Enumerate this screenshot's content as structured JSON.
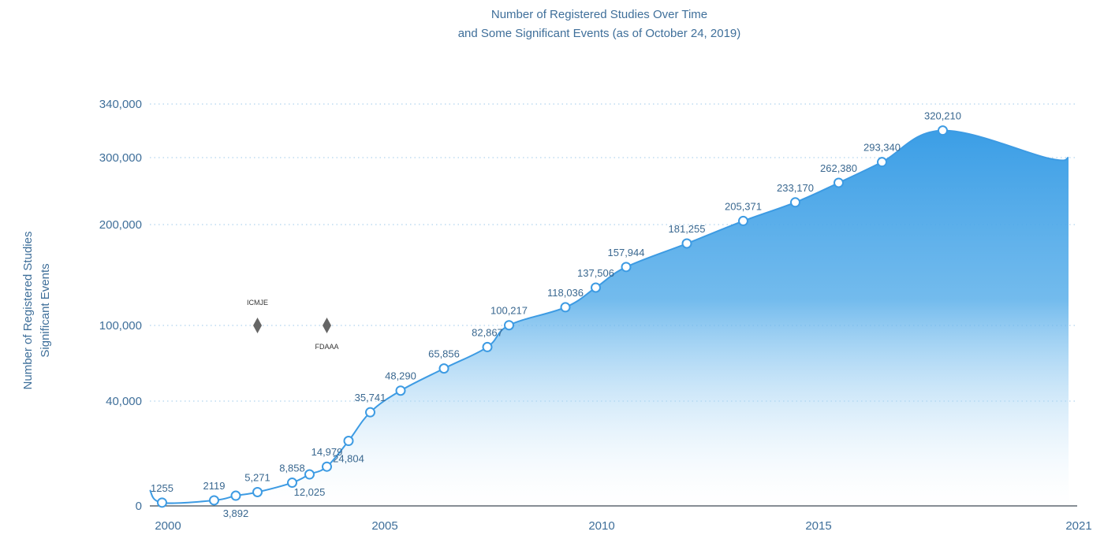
{
  "chart_data": {
    "type": "area",
    "title": [
      "Number of Registered Studies Over Time",
      "and Some Significant Events (as of October 24, 2019)"
    ],
    "ylabel": [
      "Number of Registered Studies",
      "Significant Events"
    ],
    "xlabel": "",
    "y_ticks": [
      {
        "value": 0,
        "label": "0"
      },
      {
        "value": 40000,
        "label": "40,000"
      },
      {
        "value": 100000,
        "label": "100,000"
      },
      {
        "value": 200000,
        "label": "200,000"
      },
      {
        "value": 300000,
        "label": "300,000"
      },
      {
        "value": 340000,
        "label": "340,000"
      }
    ],
    "y_scale": "non-linear (uneven tick spacing)",
    "x_ticks": [
      "2000",
      "2005",
      "2010",
      "2015",
      "2021"
    ],
    "xlim": [
      2000,
      2021
    ],
    "grid": "horizontal dotted lines at y ticks",
    "points": [
      {
        "x": 2000.1,
        "y": 1255,
        "label": "1255",
        "label_pos": "above"
      },
      {
        "x": 2001.3,
        "y": 2119,
        "label": "2119",
        "label_pos": "above"
      },
      {
        "x": 2001.8,
        "y": 3892,
        "label": "3,892",
        "label_pos": "below"
      },
      {
        "x": 2002.3,
        "y": 5271,
        "label": "5,271",
        "label_pos": "above"
      },
      {
        "x": 2003.1,
        "y": 8858,
        "label": "8,858",
        "label_pos": "above"
      },
      {
        "x": 2003.5,
        "y": 12025,
        "label": "12,025",
        "label_pos": "below"
      },
      {
        "x": 2003.9,
        "y": 14979,
        "label": "14,979",
        "label_pos": "above"
      },
      {
        "x": 2004.4,
        "y": 24804,
        "label": "24,804",
        "label_pos": "below"
      },
      {
        "x": 2004.9,
        "y": 35741,
        "label": "35,741",
        "label_pos": "above"
      },
      {
        "x": 2005.6,
        "y": 48290,
        "label": "48,290",
        "label_pos": "above"
      },
      {
        "x": 2006.6,
        "y": 65856,
        "label": "65,856",
        "label_pos": "above"
      },
      {
        "x": 2007.6,
        "y": 82867,
        "label": "82,867",
        "label_pos": "above"
      },
      {
        "x": 2008.1,
        "y": 100217,
        "label": "100,217",
        "label_pos": "above"
      },
      {
        "x": 2009.4,
        "y": 118036,
        "label": "118,036",
        "label_pos": "above"
      },
      {
        "x": 2010.1,
        "y": 137506,
        "label": "137,506",
        "label_pos": "above"
      },
      {
        "x": 2010.8,
        "y": 157944,
        "label": "157,944",
        "label_pos": "above"
      },
      {
        "x": 2012.2,
        "y": 181255,
        "label": "181,255",
        "label_pos": "above"
      },
      {
        "x": 2013.5,
        "y": 205371,
        "label": "205,371",
        "label_pos": "above"
      },
      {
        "x": 2014.7,
        "y": 233170,
        "label": "233,170",
        "label_pos": "above"
      },
      {
        "x": 2015.7,
        "y": 262380,
        "label": "262,380",
        "label_pos": "above"
      },
      {
        "x": 2016.7,
        "y": 293340,
        "label": "293,340",
        "label_pos": "above"
      },
      {
        "x": 2018.1,
        "y": 320210,
        "label": "320,210",
        "label_pos": "above"
      }
    ],
    "events": [
      {
        "name": "ICMJE",
        "x": 2002.3,
        "label_pos": "above"
      },
      {
        "name": "FDAAA",
        "x": 2003.9,
        "label_pos": "below"
      }
    ],
    "colors": {
      "area_top": "#3b9ee6",
      "area_bottom": "#ffffff",
      "line": "#3d9be3",
      "marker_fill": "#ffffff",
      "marker_stroke": "#3d9be3",
      "event_marker": "#666666",
      "text": "#3f6f9a",
      "grid": "#9cc8ea"
    }
  }
}
